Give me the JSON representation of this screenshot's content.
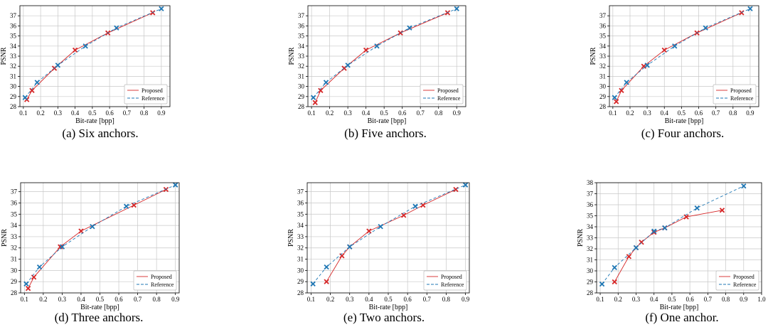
{
  "chart_data": [
    {
      "type": "line",
      "caption": "(a) Six anchors.",
      "xlabel": "Bit-rate [bpp]",
      "ylabel": "PSNR",
      "xlim": [
        0.08,
        0.95
      ],
      "ylim": [
        28,
        38
      ],
      "xticks": [
        "0.1",
        "0.2",
        "0.3",
        "0.4",
        "0.5",
        "0.6",
        "0.7",
        "0.8",
        "0.9"
      ],
      "yticks": [
        "28",
        "29",
        "30",
        "31",
        "32",
        "33",
        "34",
        "35",
        "36",
        "37"
      ],
      "grid": true,
      "legend": "bottom-right",
      "series": [
        {
          "name": "Proposed",
          "color": "#d62728",
          "style": "solid",
          "marker": "x",
          "x": [
            0.12,
            0.15,
            0.28,
            0.4,
            0.59,
            0.85
          ],
          "y": [
            28.7,
            29.6,
            31.8,
            33.6,
            35.3,
            37.3
          ]
        },
        {
          "name": "Reference",
          "color": "#1f77b4",
          "style": "dashed",
          "marker": "x",
          "x": [
            0.11,
            0.18,
            0.3,
            0.46,
            0.64,
            0.9
          ],
          "y": [
            28.9,
            30.4,
            32.1,
            34.0,
            35.8,
            37.7
          ]
        }
      ]
    },
    {
      "type": "line",
      "caption": "(b) Five anchors.",
      "xlabel": "Bit-rate [bpp]",
      "ylabel": "PSNR",
      "xlim": [
        0.08,
        0.95
      ],
      "ylim": [
        28,
        38
      ],
      "xticks": [
        "0.1",
        "0.2",
        "0.3",
        "0.4",
        "0.5",
        "0.6",
        "0.7",
        "0.8",
        "0.9"
      ],
      "yticks": [
        "28",
        "29",
        "30",
        "31",
        "32",
        "33",
        "34",
        "35",
        "36",
        "37"
      ],
      "grid": true,
      "legend": "bottom-right",
      "series": [
        {
          "name": "Proposed",
          "color": "#d62728",
          "style": "solid",
          "marker": "x",
          "x": [
            0.12,
            0.15,
            0.28,
            0.4,
            0.59,
            0.85
          ],
          "y": [
            28.4,
            29.6,
            31.8,
            33.6,
            35.3,
            37.3
          ]
        },
        {
          "name": "Reference",
          "color": "#1f77b4",
          "style": "dashed",
          "marker": "x",
          "x": [
            0.11,
            0.18,
            0.3,
            0.46,
            0.64,
            0.9
          ],
          "y": [
            28.9,
            30.4,
            32.1,
            34.0,
            35.8,
            37.7
          ]
        }
      ]
    },
    {
      "type": "line",
      "caption": "(c) Four anchors.",
      "xlabel": "Bit-rate [bpp]",
      "ylabel": "PSNR",
      "xlim": [
        0.08,
        0.95
      ],
      "ylim": [
        28,
        38
      ],
      "xticks": [
        "0.1",
        "0.2",
        "0.3",
        "0.4",
        "0.5",
        "0.6",
        "0.7",
        "0.8",
        "0.9"
      ],
      "yticks": [
        "28",
        "29",
        "30",
        "31",
        "32",
        "33",
        "34",
        "35",
        "36",
        "37"
      ],
      "grid": true,
      "legend": "bottom-right",
      "series": [
        {
          "name": "Proposed",
          "color": "#d62728",
          "style": "solid",
          "marker": "x",
          "x": [
            0.12,
            0.15,
            0.28,
            0.4,
            0.59,
            0.85
          ],
          "y": [
            28.5,
            29.6,
            32.0,
            33.6,
            35.3,
            37.3
          ]
        },
        {
          "name": "Reference",
          "color": "#1f77b4",
          "style": "dashed",
          "marker": "x",
          "x": [
            0.11,
            0.18,
            0.3,
            0.46,
            0.64,
            0.9
          ],
          "y": [
            28.9,
            30.4,
            32.1,
            34.0,
            35.8,
            37.7
          ]
        }
      ]
    },
    {
      "type": "line",
      "caption": "(d) Three anchors.",
      "xlabel": "Bit-rate [bpp]",
      "ylabel": "PSNR",
      "xlim": [
        0.08,
        0.92
      ],
      "ylim": [
        28,
        37.8
      ],
      "xticks": [
        "0.1",
        "0.2",
        "0.3",
        "0.4",
        "0.5",
        "0.6",
        "0.7",
        "0.8",
        "0.9"
      ],
      "yticks": [
        "28",
        "29",
        "30",
        "31",
        "32",
        "33",
        "34",
        "35",
        "36",
        "37"
      ],
      "grid": true,
      "legend": "bottom-right",
      "series": [
        {
          "name": "Proposed",
          "color": "#d62728",
          "style": "solid",
          "marker": "x",
          "x": [
            0.12,
            0.15,
            0.29,
            0.4,
            0.68,
            0.85
          ],
          "y": [
            28.4,
            29.4,
            32.1,
            33.5,
            35.8,
            37.2
          ]
        },
        {
          "name": "Reference",
          "color": "#1f77b4",
          "style": "dashed",
          "marker": "x",
          "x": [
            0.11,
            0.18,
            0.3,
            0.46,
            0.64,
            0.9
          ],
          "y": [
            28.8,
            30.3,
            32.1,
            33.9,
            35.7,
            37.6
          ]
        }
      ]
    },
    {
      "type": "line",
      "caption": "(e) Two anchors.",
      "xlabel": "Bit-rate [bpp]",
      "ylabel": "PSNR",
      "xlim": [
        0.08,
        0.92
      ],
      "ylim": [
        28,
        37.8
      ],
      "xticks": [
        "0.1",
        "0.2",
        "0.3",
        "0.4",
        "0.5",
        "0.6",
        "0.7",
        "0.8",
        "0.9"
      ],
      "yticks": [
        "28",
        "29",
        "30",
        "31",
        "32",
        "33",
        "34",
        "35",
        "36",
        "37"
      ],
      "grid": true,
      "legend": "bottom-right",
      "series": [
        {
          "name": "Proposed",
          "color": "#d62728",
          "style": "solid",
          "marker": "x",
          "x": [
            0.18,
            0.26,
            0.3,
            0.4,
            0.58,
            0.68,
            0.85
          ],
          "y": [
            29.0,
            31.3,
            32.1,
            33.5,
            34.9,
            35.8,
            37.2
          ]
        },
        {
          "name": "Reference",
          "color": "#1f77b4",
          "style": "dashed",
          "marker": "x",
          "x": [
            0.11,
            0.18,
            0.3,
            0.46,
            0.64,
            0.9
          ],
          "y": [
            28.8,
            30.3,
            32.1,
            33.9,
            35.7,
            37.6
          ]
        }
      ]
    },
    {
      "type": "line",
      "caption": "(f) One anchor.",
      "xlabel": "Bit-rate [bpp]",
      "ylabel": "PSNR",
      "xlim": [
        0.08,
        1.0
      ],
      "ylim": [
        28,
        38
      ],
      "xticks": [
        "0.1",
        "0.2",
        "0.3",
        "0.4",
        "0.5",
        "0.6",
        "0.7",
        "0.8",
        "0.9",
        "1.0"
      ],
      "yticks": [
        "28",
        "29",
        "30",
        "31",
        "32",
        "33",
        "34",
        "35",
        "36",
        "37",
        "38"
      ],
      "grid": true,
      "legend": "bottom-right",
      "series": [
        {
          "name": "Proposed",
          "color": "#d62728",
          "style": "solid",
          "marker": "x",
          "x": [
            0.18,
            0.26,
            0.3,
            0.33,
            0.4,
            0.46,
            0.58,
            0.78
          ],
          "y": [
            29.0,
            31.3,
            32.1,
            32.6,
            33.5,
            33.9,
            34.9,
            35.5
          ]
        },
        {
          "name": "Reference",
          "color": "#1f77b4",
          "style": "dashed",
          "marker": "x",
          "x": [
            0.11,
            0.18,
            0.3,
            0.4,
            0.46,
            0.64,
            0.9
          ],
          "y": [
            28.8,
            30.3,
            32.1,
            33.6,
            33.9,
            35.7,
            37.7
          ]
        }
      ]
    }
  ]
}
